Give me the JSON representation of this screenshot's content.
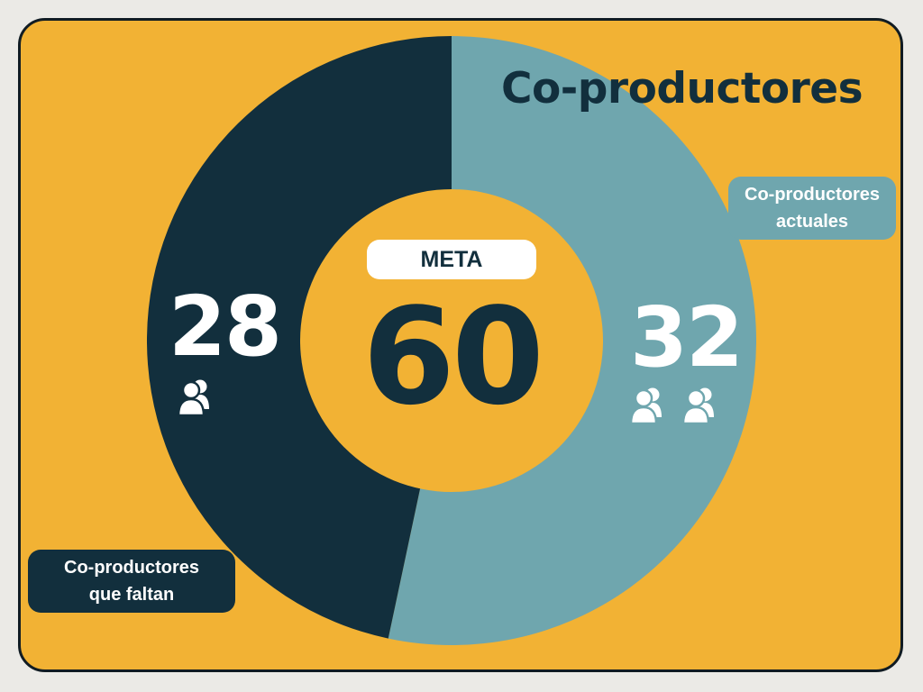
{
  "colors": {
    "background": "#f2b234",
    "missing": "#122f3d",
    "actual": "#6fa6ae",
    "text_light": "#ffffff",
    "text_dark": "#122f3d"
  },
  "chart_data": {
    "type": "pie",
    "title": "Co-productores",
    "goal_label": "META",
    "goal_value": 60,
    "slices": [
      {
        "name": "Co-productores actuales",
        "value": 32,
        "color": "#6fa6ae"
      },
      {
        "name": "Co-productores que faltan",
        "value": 28,
        "color": "#122f3d"
      }
    ],
    "labels": {
      "actual_value": "32",
      "missing_value": "28",
      "goal_value": "60",
      "actual_line1": "Co-productores",
      "actual_line2": "actuales",
      "missing_line1": "Co-productores",
      "missing_line2": "que faltan"
    },
    "icons": {
      "actual": [
        "users-icon",
        "users-icon"
      ],
      "missing": [
        "users-icon"
      ]
    }
  }
}
